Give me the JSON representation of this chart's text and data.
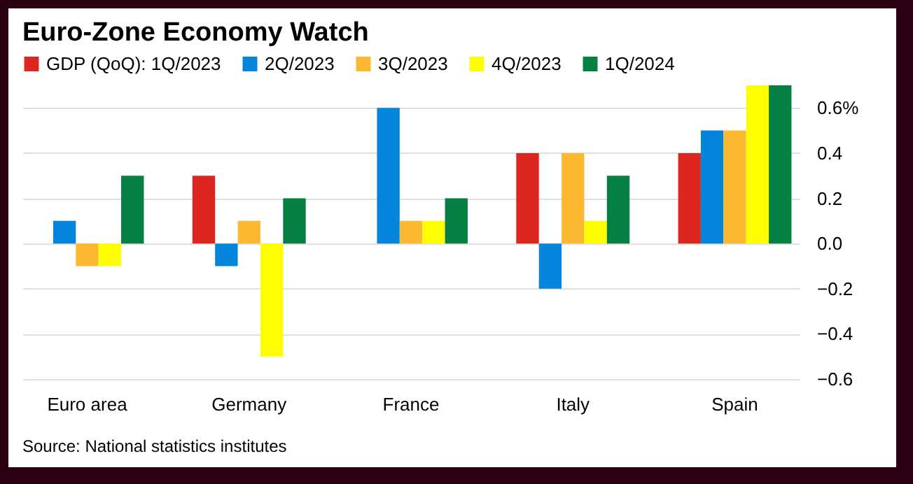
{
  "chart_data": {
    "type": "bar",
    "title": "Euro-Zone Economy Watch",
    "categories": [
      "Euro area",
      "Germany",
      "France",
      "Italy",
      "Spain"
    ],
    "series": [
      {
        "name": "GDP (QoQ): 1Q/2023",
        "color": "#dc2620",
        "values": [
          0,
          0.3,
          0,
          0.4,
          0.4
        ]
      },
      {
        "name": "2Q/2023",
        "color": "#0485dc",
        "values": [
          0.1,
          -0.1,
          0.6,
          -0.2,
          0.5
        ]
      },
      {
        "name": "3Q/2023",
        "color": "#fdb831",
        "values": [
          -0.1,
          0.1,
          0.1,
          0.4,
          0.5
        ]
      },
      {
        "name": "4Q/2023",
        "color": "#fefe00",
        "values": [
          -0.1,
          -0.5,
          0.1,
          0.1,
          0.7
        ]
      },
      {
        "name": "1Q/2024",
        "color": "#048142",
        "values": [
          0.3,
          0.2,
          0.2,
          0.3,
          0.7
        ]
      }
    ],
    "ylim": [
      -0.6,
      0.7
    ],
    "yticks": [
      {
        "value": 0.6,
        "label": "0.6%"
      },
      0.4,
      0.2,
      {
        "value": 0,
        "label": "0.0"
      },
      -0.2,
      -0.4,
      -0.6
    ],
    "grid": "y",
    "legend": "top",
    "annotations": [
      "Source: National statistics institutes"
    ]
  }
}
